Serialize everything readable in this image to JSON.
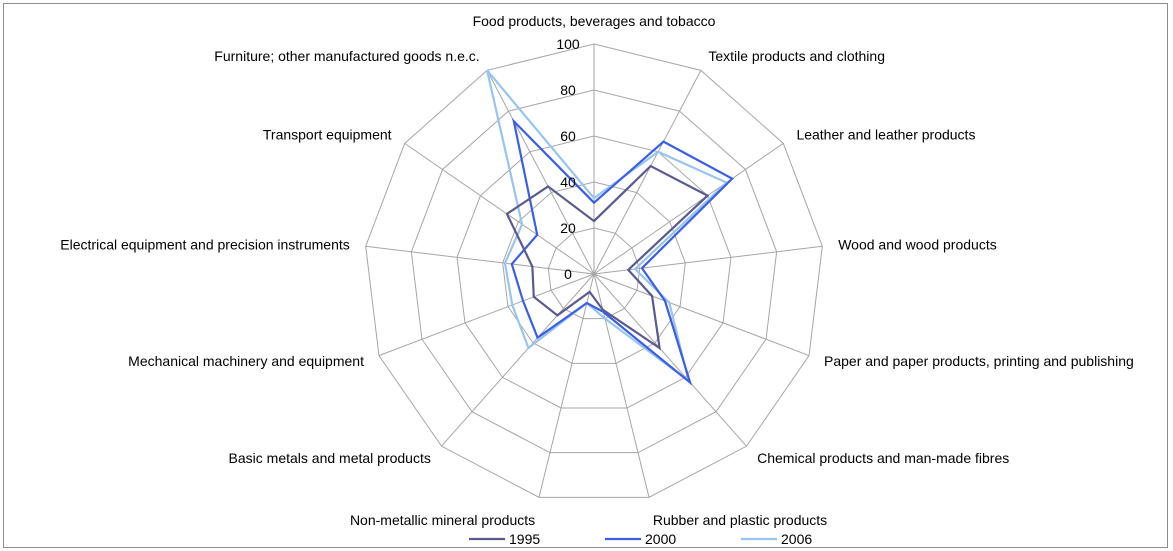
{
  "chart_data": {
    "type": "radar",
    "title": "",
    "categories": [
      "Food products, beverages and tobacco",
      "Textile products and clothing",
      "Leather and leather products",
      "Wood and wood products",
      "Paper and paper products, printing and publishing",
      "Chemical products and man-made fibres",
      "Rubber and plastic products",
      "Non-metallic mineral products",
      "Basic metals and metal products",
      "Mechanical machinery and equipment",
      "Electrical equipment and precision instruments",
      "Transport equipment",
      "Furniture; other manufactured goods n.e.c."
    ],
    "series": [
      {
        "name": "1995",
        "color": "#5a5a8c",
        "values": [
          23,
          53,
          60,
          15,
          27,
          43,
          16,
          8,
          24,
          28,
          27,
          46,
          43
        ]
      },
      {
        "name": "2000",
        "color": "#3b5fe0",
        "values": [
          31,
          65,
          73,
          21,
          33,
          63,
          17,
          13,
          37,
          33,
          36,
          30,
          75
        ]
      },
      {
        "name": "2006",
        "color": "#99c4ee",
        "values": [
          33,
          60,
          70,
          18,
          35,
          62,
          20,
          13,
          43,
          38,
          39,
          38,
          100
        ]
      }
    ],
    "axis": {
      "min": 0,
      "max": 100,
      "ticks": [
        0,
        20,
        40,
        60,
        80,
        100
      ]
    },
    "grid": true,
    "legend": "bottom"
  }
}
